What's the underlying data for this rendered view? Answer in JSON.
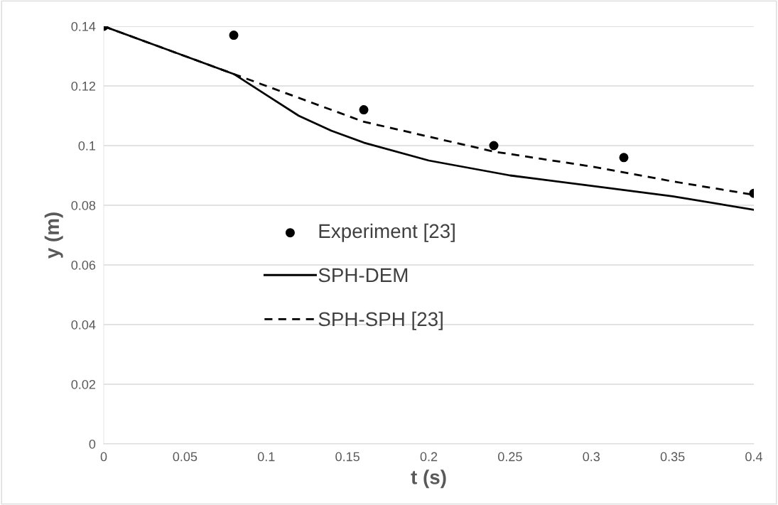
{
  "chart_data": {
    "type": "line",
    "xlabel": "t (s)",
    "ylabel": "y (m)",
    "xlim": [
      0,
      0.4
    ],
    "xticks": [
      0,
      0.05,
      0.1,
      0.15,
      0.2,
      0.25,
      0.3,
      0.35,
      0.4
    ],
    "ylim": [
      0,
      0.14
    ],
    "yticks": [
      0,
      0.02,
      0.04,
      0.06,
      0.08,
      0.1,
      0.12,
      0.14
    ],
    "grid": "y",
    "legend": "center left",
    "series": [
      {
        "name": "Experiment [23]",
        "type": "scatter",
        "marker": "circle",
        "color": "#000000",
        "x": [
          0,
          0.08,
          0.16,
          0.24,
          0.32,
          0.4
        ],
        "values": [
          0.14,
          0.137,
          0.112,
          0.1,
          0.096,
          0.084
        ]
      },
      {
        "name": "SPH-DEM",
        "type": "line",
        "line_style": "solid",
        "color": "#000000",
        "x": [
          0,
          0.05,
          0.08,
          0.1,
          0.12,
          0.14,
          0.16,
          0.2,
          0.25,
          0.3,
          0.35,
          0.4
        ],
        "values": [
          0.14,
          0.13,
          0.124,
          0.117,
          0.11,
          0.105,
          0.101,
          0.095,
          0.09,
          0.0865,
          0.083,
          0.0785
        ]
      },
      {
        "name": "SPH-SPH [23]",
        "type": "line",
        "line_style": "dashed",
        "color": "#000000",
        "x": [
          0,
          0.08,
          0.1,
          0.16,
          0.2,
          0.24,
          0.3,
          0.35,
          0.4
        ],
        "values": [
          0.14,
          0.124,
          0.12,
          0.108,
          0.103,
          0.098,
          0.093,
          0.088,
          0.0835
        ]
      }
    ]
  }
}
